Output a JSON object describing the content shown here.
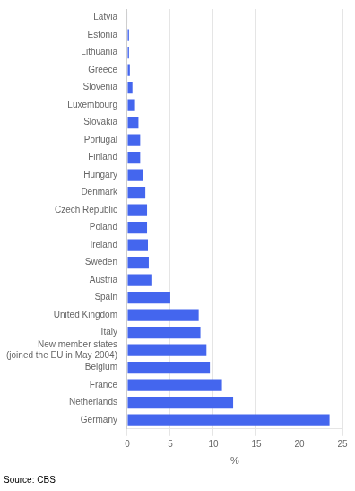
{
  "chart_data": {
    "type": "bar",
    "orientation": "horizontal",
    "categories": [
      "Germany",
      "Netherlands",
      "France",
      "Belgium",
      "New member states\n(joined the EU in May 2004)",
      "Italy",
      "United Kingdom",
      "Spain",
      "Austria",
      "Sweden",
      "Ireland",
      "Poland",
      "Czech Republic",
      "Denmark",
      "Hungary",
      "Finland",
      "Portugal",
      "Slovakia",
      "Luxembourg",
      "Slovenia",
      "Greece",
      "Lithuania",
      "Estonia",
      "Latvia"
    ],
    "values": [
      23.5,
      12.3,
      11.0,
      9.6,
      9.2,
      8.5,
      8.3,
      5.0,
      2.8,
      2.5,
      2.4,
      2.3,
      2.3,
      2.1,
      1.8,
      1.5,
      1.5,
      1.3,
      0.9,
      0.6,
      0.3,
      0.2,
      0.2,
      0.05
    ],
    "color": "#4466ee",
    "xlabel": "%",
    "xlim": [
      0,
      25
    ],
    "xticks": [
      0,
      5,
      10,
      15,
      20,
      25
    ],
    "grid": true,
    "annotations": [
      "Source: CBS"
    ]
  }
}
